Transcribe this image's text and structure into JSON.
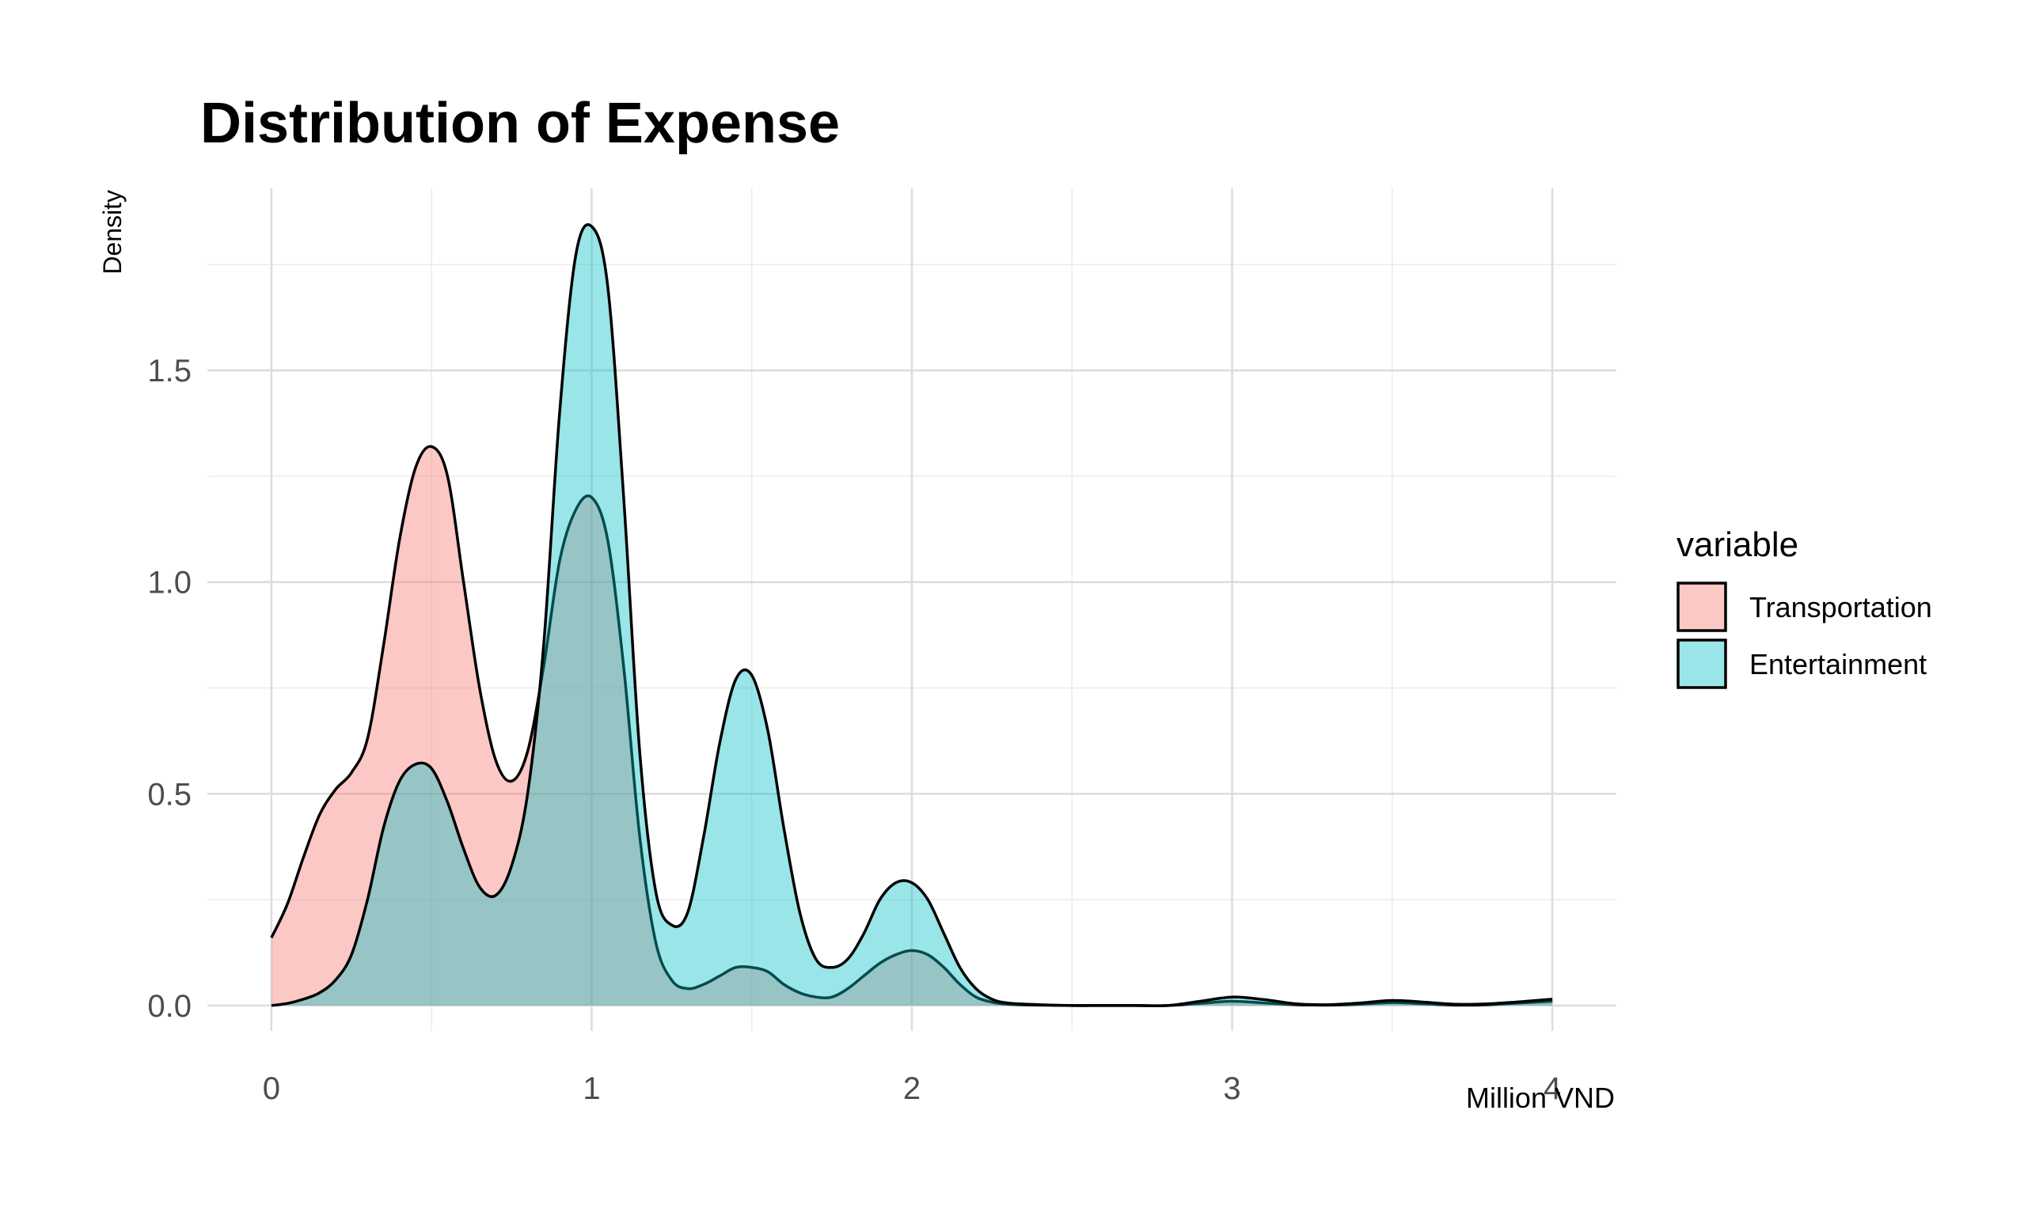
{
  "chart_data": {
    "type": "area",
    "title": "Distribution of Expense",
    "xlabel": "Million VND",
    "ylabel": "Density",
    "xlim": [
      -0.2,
      4.2
    ],
    "ylim": [
      -0.06,
      1.93
    ],
    "x_ticks": [
      0,
      1,
      2,
      3,
      4
    ],
    "x_tick_labels": [
      "0",
      "1",
      "2",
      "3",
      "4"
    ],
    "x_minor_grid": [
      0.5,
      1.5,
      2.5,
      3.5
    ],
    "y_ticks": [
      0.0,
      0.5,
      1.0,
      1.5
    ],
    "y_tick_labels": [
      "0.0",
      "0.5",
      "1.0",
      "1.5"
    ],
    "y_minor_grid": [
      0.25,
      0.75,
      1.25,
      1.75
    ],
    "grid": true,
    "legend": {
      "title": "variable",
      "position": "right"
    },
    "series": [
      {
        "name": "Transportation",
        "color": "#F8766D",
        "x": [
          0.0,
          0.05,
          0.1,
          0.15,
          0.2,
          0.25,
          0.3,
          0.35,
          0.4,
          0.45,
          0.5,
          0.55,
          0.6,
          0.65,
          0.7,
          0.75,
          0.8,
          0.85,
          0.9,
          0.95,
          1.0,
          1.05,
          1.1,
          1.15,
          1.2,
          1.25,
          1.3,
          1.35,
          1.4,
          1.45,
          1.5,
          1.55,
          1.6,
          1.65,
          1.7,
          1.75,
          1.8,
          1.85,
          1.9,
          1.95,
          2.0,
          2.05,
          2.1,
          2.15,
          2.2,
          2.25,
          2.3,
          2.4,
          2.5,
          2.6,
          2.7,
          2.8,
          2.9,
          3.0,
          3.1,
          3.2,
          3.3,
          3.4,
          3.5,
          3.6,
          3.7,
          3.8,
          3.9,
          4.0
        ],
        "values": [
          0.16,
          0.24,
          0.35,
          0.45,
          0.51,
          0.55,
          0.63,
          0.85,
          1.1,
          1.27,
          1.32,
          1.25,
          1.0,
          0.75,
          0.58,
          0.53,
          0.6,
          0.8,
          1.05,
          1.17,
          1.2,
          1.1,
          0.8,
          0.4,
          0.15,
          0.06,
          0.04,
          0.05,
          0.07,
          0.09,
          0.09,
          0.08,
          0.05,
          0.03,
          0.02,
          0.02,
          0.04,
          0.07,
          0.1,
          0.12,
          0.13,
          0.12,
          0.09,
          0.05,
          0.02,
          0.008,
          0.003,
          0.001,
          0.0,
          0.0,
          0.0,
          0.0,
          0.005,
          0.01,
          0.006,
          0.002,
          0.001,
          0.003,
          0.007,
          0.004,
          0.001,
          0.002,
          0.006,
          0.01
        ]
      },
      {
        "name": "Entertainment",
        "color": "#00BFC4",
        "x": [
          0.0,
          0.05,
          0.1,
          0.15,
          0.2,
          0.25,
          0.3,
          0.35,
          0.4,
          0.45,
          0.5,
          0.55,
          0.6,
          0.65,
          0.7,
          0.75,
          0.8,
          0.85,
          0.9,
          0.95,
          1.0,
          1.05,
          1.1,
          1.15,
          1.2,
          1.25,
          1.3,
          1.35,
          1.4,
          1.45,
          1.5,
          1.55,
          1.6,
          1.65,
          1.7,
          1.75,
          1.8,
          1.85,
          1.9,
          1.95,
          2.0,
          2.05,
          2.1,
          2.15,
          2.2,
          2.25,
          2.3,
          2.4,
          2.5,
          2.6,
          2.7,
          2.8,
          2.9,
          3.0,
          3.1,
          3.2,
          3.3,
          3.4,
          3.5,
          3.6,
          3.7,
          3.8,
          3.9,
          4.0
        ],
        "values": [
          0.0,
          0.005,
          0.015,
          0.03,
          0.06,
          0.12,
          0.25,
          0.42,
          0.53,
          0.57,
          0.56,
          0.48,
          0.37,
          0.28,
          0.26,
          0.33,
          0.5,
          0.85,
          1.4,
          1.77,
          1.84,
          1.7,
          1.2,
          0.6,
          0.27,
          0.19,
          0.22,
          0.4,
          0.62,
          0.77,
          0.78,
          0.65,
          0.42,
          0.22,
          0.11,
          0.09,
          0.11,
          0.17,
          0.25,
          0.29,
          0.29,
          0.25,
          0.17,
          0.09,
          0.04,
          0.015,
          0.006,
          0.002,
          0.0,
          0.0,
          0.0,
          0.0,
          0.01,
          0.02,
          0.014,
          0.004,
          0.002,
          0.006,
          0.012,
          0.008,
          0.003,
          0.004,
          0.009,
          0.015
        ]
      }
    ]
  }
}
